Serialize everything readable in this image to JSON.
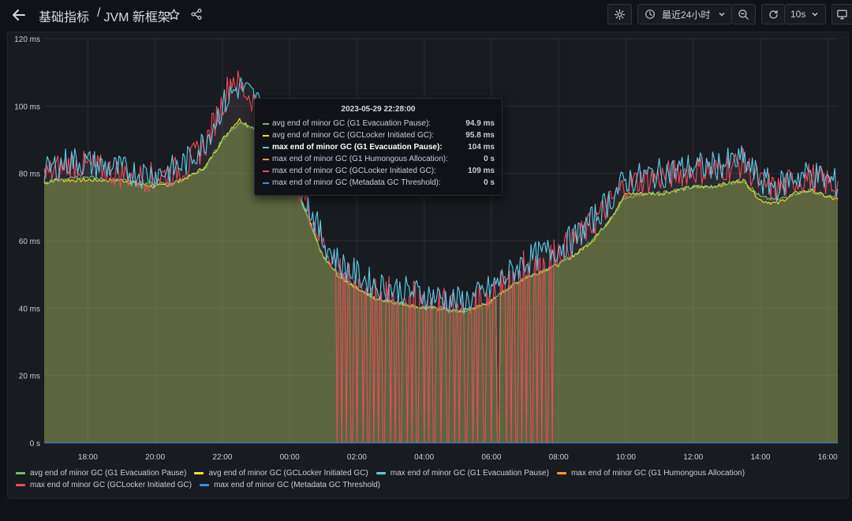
{
  "header": {
    "breadcrumb_folder": "基础指标",
    "separator": "/",
    "dashboard_title": "JVM 新框架",
    "time_range_label": "最近24小时",
    "refresh_interval": "10s"
  },
  "tooltip": {
    "time": "2023-05-29 22:28:00",
    "rows": [
      {
        "name": "avg end of minor GC (G1 Evacuation Pause):",
        "value": "94.9 ms",
        "color": "#73bf69",
        "bold": false
      },
      {
        "name": "avg end of minor GC (GCLocker Initiated GC):",
        "value": "95.8 ms",
        "color": "#fade2a",
        "bold": false
      },
      {
        "name": "max end of minor GC (G1 Evacuation Pause):",
        "value": "104 ms",
        "color": "#5fc9e6",
        "bold": true
      },
      {
        "name": "max end of minor GC (G1 Humongous Allocation):",
        "value": "0 s",
        "color": "#ff9830",
        "bold": false
      },
      {
        "name": "max end of minor GC (GCLocker Initiated GC):",
        "value": "109 ms",
        "color": "#f2495c",
        "bold": false
      },
      {
        "name": "max end of minor GC (Metadata GC Threshold):",
        "value": "0 s",
        "color": "#3d8be8",
        "bold": false
      }
    ]
  },
  "legend": [
    {
      "name": "avg end of minor GC (G1 Evacuation Pause)",
      "color": "#73bf69"
    },
    {
      "name": "avg end of minor GC (GCLocker Initiated GC)",
      "color": "#fade2a"
    },
    {
      "name": "max end of minor GC (G1 Evacuation Pause)",
      "color": "#5fc9e6"
    },
    {
      "name": "max end of minor GC (G1 Humongous Allocation)",
      "color": "#ff9830"
    },
    {
      "name": "max end of minor GC (GCLocker Initiated GC)",
      "color": "#f2495c"
    },
    {
      "name": "max end of minor GC (Metadata GC Threshold)",
      "color": "#3d8be8"
    }
  ],
  "chart_data": {
    "type": "area",
    "xlabel": "",
    "ylabel": "",
    "ylim": [
      0,
      120
    ],
    "y_unit": "ms",
    "y_ticks": [
      {
        "value": 0,
        "label": "0 s"
      },
      {
        "value": 20,
        "label": "20 ms"
      },
      {
        "value": 40,
        "label": "40 ms"
      },
      {
        "value": 60,
        "label": "60 ms"
      },
      {
        "value": 80,
        "label": "80 ms"
      },
      {
        "value": 100,
        "label": "100 ms"
      },
      {
        "value": 120,
        "label": "120 ms"
      }
    ],
    "x_range_hours": [
      16.7,
      40.3
    ],
    "x_ticks": [
      {
        "value": 18,
        "label": "18:00"
      },
      {
        "value": 20,
        "label": "20:00"
      },
      {
        "value": 22,
        "label": "22:00"
      },
      {
        "value": 24,
        "label": "00:00"
      },
      {
        "value": 26,
        "label": "02:00"
      },
      {
        "value": 28,
        "label": "04:00"
      },
      {
        "value": 30,
        "label": "06:00"
      },
      {
        "value": 32,
        "label": "08:00"
      },
      {
        "value": 34,
        "label": "10:00"
      },
      {
        "value": 36,
        "label": "12:00"
      },
      {
        "value": 38,
        "label": "14:00"
      },
      {
        "value": 40,
        "label": "16:00"
      }
    ],
    "grid": true,
    "legend_position": "bottom",
    "x": [
      16.7,
      17.0,
      17.5,
      18.0,
      18.5,
      19.0,
      19.5,
      20.0,
      20.5,
      21.0,
      21.5,
      22.0,
      22.3,
      22.5,
      23.0,
      23.5,
      24.0,
      24.5,
      25.0,
      25.5,
      26.0,
      26.5,
      27.0,
      27.5,
      28.0,
      28.5,
      29.0,
      29.5,
      30.0,
      30.5,
      31.0,
      31.5,
      32.0,
      32.5,
      33.0,
      33.5,
      34.0,
      34.5,
      35.0,
      35.5,
      36.0,
      36.5,
      37.0,
      37.5,
      38.0,
      38.5,
      39.0,
      39.5,
      40.0,
      40.3
    ],
    "series": [
      {
        "name": "avg end of minor GC (G1 Evacuation Pause)",
        "color": "#73bf69",
        "values": [
          77,
          78,
          79,
          79,
          78,
          78,
          77,
          77,
          77,
          79,
          82,
          90,
          93,
          95,
          93,
          88,
          80,
          68,
          55,
          50,
          46,
          43,
          42,
          41,
          40,
          40,
          39,
          40,
          42,
          46,
          49,
          51,
          53,
          56,
          60,
          66,
          73,
          74,
          74,
          75,
          76,
          76,
          77,
          78,
          73,
          72,
          74,
          75,
          73,
          73
        ]
      },
      {
        "name": "avg end of minor GC (GCLocker Initiated GC)",
        "color": "#fade2a",
        "values": [
          77,
          78,
          78,
          78,
          78,
          78,
          77,
          76,
          77,
          79,
          82,
          90,
          94,
          96,
          93,
          88,
          80,
          68,
          55,
          49,
          46,
          43,
          42,
          41,
          40,
          40,
          39,
          40,
          42,
          46,
          49,
          51,
          53,
          56,
          60,
          66,
          74,
          74,
          74,
          75,
          76,
          76,
          77,
          78,
          72,
          71,
          74,
          75,
          73,
          72
        ]
      },
      {
        "name": "max end of minor GC (G1 Evacuation Pause)",
        "color": "#5fc9e6",
        "values": [
          80,
          82,
          84,
          83,
          82,
          81,
          80,
          80,
          81,
          84,
          90,
          100,
          104,
          106,
          102,
          94,
          84,
          72,
          60,
          53,
          50,
          47,
          46,
          45,
          44,
          43,
          42,
          43,
          46,
          50,
          54,
          56,
          58,
          61,
          66,
          72,
          78,
          79,
          80,
          81,
          82,
          82,
          83,
          84,
          78,
          76,
          79,
          80,
          78,
          77
        ]
      },
      {
        "name": "max end of minor GC (G1 Humongous Allocation)",
        "color": "#ff9830",
        "values": [
          0,
          0,
          0,
          0,
          0,
          0,
          0,
          0,
          0,
          0,
          0,
          0,
          0,
          0,
          0,
          0,
          0,
          0,
          0,
          0,
          0,
          0,
          0,
          0,
          0,
          0,
          0,
          0,
          0,
          0,
          0,
          0,
          0,
          0,
          0,
          0,
          0,
          0,
          0,
          0,
          0,
          0,
          0,
          0,
          0,
          0,
          0,
          0,
          0,
          0
        ]
      },
      {
        "name": "max end of minor GC (GCLocker Initiated GC)",
        "color": "#f2495c",
        "values": [
          79,
          81,
          83,
          82,
          81,
          80,
          79,
          79,
          80,
          83,
          89,
          101,
          109,
          106,
          101,
          93,
          83,
          71,
          59,
          52,
          49,
          46,
          45,
          44,
          43,
          42,
          41,
          42,
          45,
          49,
          53,
          55,
          57,
          60,
          65,
          71,
          77,
          78,
          79,
          80,
          81,
          81,
          82,
          83,
          77,
          75,
          78,
          79,
          77,
          76
        ]
      },
      {
        "name": "max end of minor GC (Metadata GC Threshold)",
        "color": "#3d8be8",
        "values": [
          0,
          0,
          0,
          0,
          0,
          0,
          0,
          0,
          0,
          0,
          0,
          0,
          0,
          0,
          0,
          0,
          0,
          0,
          0,
          0,
          0,
          0,
          0,
          0,
          0,
          0,
          0,
          0,
          0,
          0,
          0,
          0,
          0,
          0,
          0,
          0,
          0,
          0,
          0,
          0,
          0,
          0,
          0,
          0,
          0,
          0,
          0,
          0,
          0,
          0
        ]
      }
    ],
    "drop_to_zero_hours": [
      25.4,
      25.55,
      25.7,
      25.85,
      26.0,
      26.2,
      26.35,
      26.5,
      26.65,
      26.8,
      27.0,
      27.15,
      27.3,
      27.5,
      27.65,
      27.8,
      28.0,
      28.15,
      28.3,
      28.5,
      28.7,
      28.9,
      29.05,
      29.25,
      29.45,
      29.6,
      29.8,
      30.0,
      30.2,
      30.45,
      30.6,
      30.75,
      30.9,
      31.05,
      31.2,
      31.35,
      31.5,
      31.65,
      31.8
    ]
  }
}
